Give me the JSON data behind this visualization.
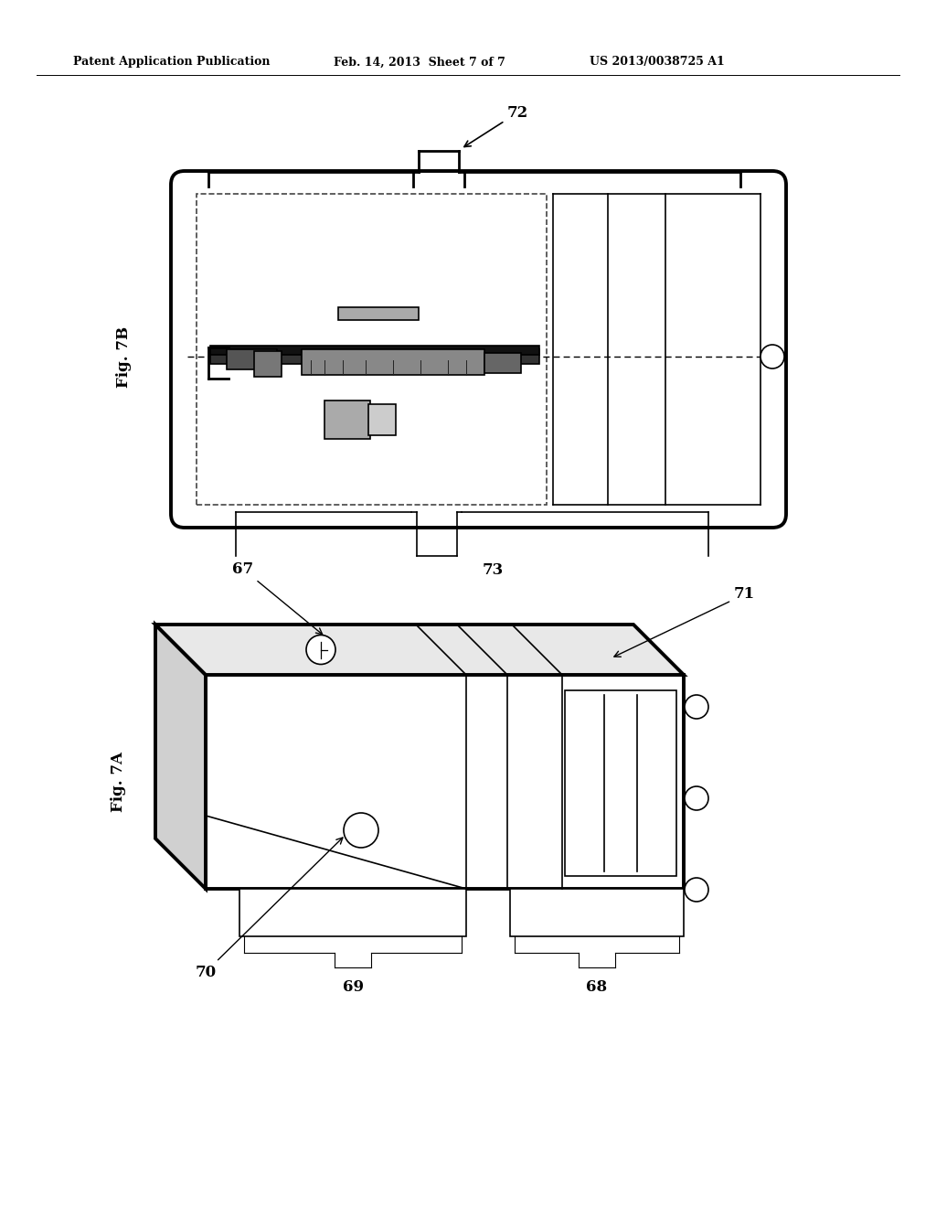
{
  "bg_color": "#ffffff",
  "header_left": "Patent Application Publication",
  "header_mid": "Feb. 14, 2013  Sheet 7 of 7",
  "header_right": "US 2013/0038725 A1",
  "fig7b_label": "Fig. 7B",
  "fig7a_label": "Fig. 7A",
  "label_72": "72",
  "label_73": "73",
  "label_67": "67",
  "label_71": "71",
  "label_70": "70",
  "label_69": "69",
  "label_68": "68"
}
